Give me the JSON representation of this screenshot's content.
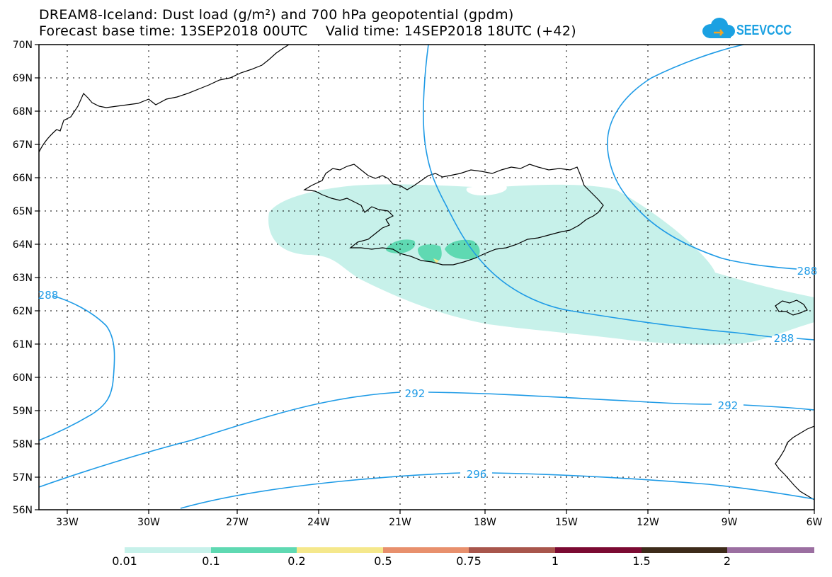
{
  "title": {
    "line1": "DREAM8-Iceland: Dust load (g/m²) and 700 hPa geopotential (gpdm)",
    "line2": "Forecast base time: 13SEP2018 00UTC    Valid time: 14SEP2018 18UTC (+42)"
  },
  "logo": {
    "text": "SEEVCCC",
    "icon": "cloud-icon",
    "color": "#1ba1e2"
  },
  "lat_labels": [
    "70N",
    "69N",
    "68N",
    "67N",
    "66N",
    "65N",
    "64N",
    "63N",
    "62N",
    "61N",
    "60N",
    "59N",
    "58N",
    "57N",
    "56N"
  ],
  "lon_labels": [
    "33W",
    "30W",
    "27W",
    "24W",
    "21W",
    "18W",
    "15W",
    "12W",
    "9W",
    "6W"
  ],
  "contour_labels": [
    "288",
    "288",
    "288",
    "292",
    "292",
    "296"
  ],
  "colorbar": {
    "labels": [
      "0.01",
      "0.1",
      "0.2",
      "0.5",
      "0.75",
      "1",
      "1.5",
      "2"
    ],
    "colors": [
      "#c7f1ea",
      "#5fd9b2",
      "#f5e88c",
      "#e8906d",
      "#a8564c",
      "#7b0a32",
      "#3d2b1a",
      "#9b6fa1"
    ]
  },
  "colors": {
    "contour": "#1f9be6",
    "dust_light": "#c7f1ea",
    "dust_mid": "#5fd9b2"
  }
}
